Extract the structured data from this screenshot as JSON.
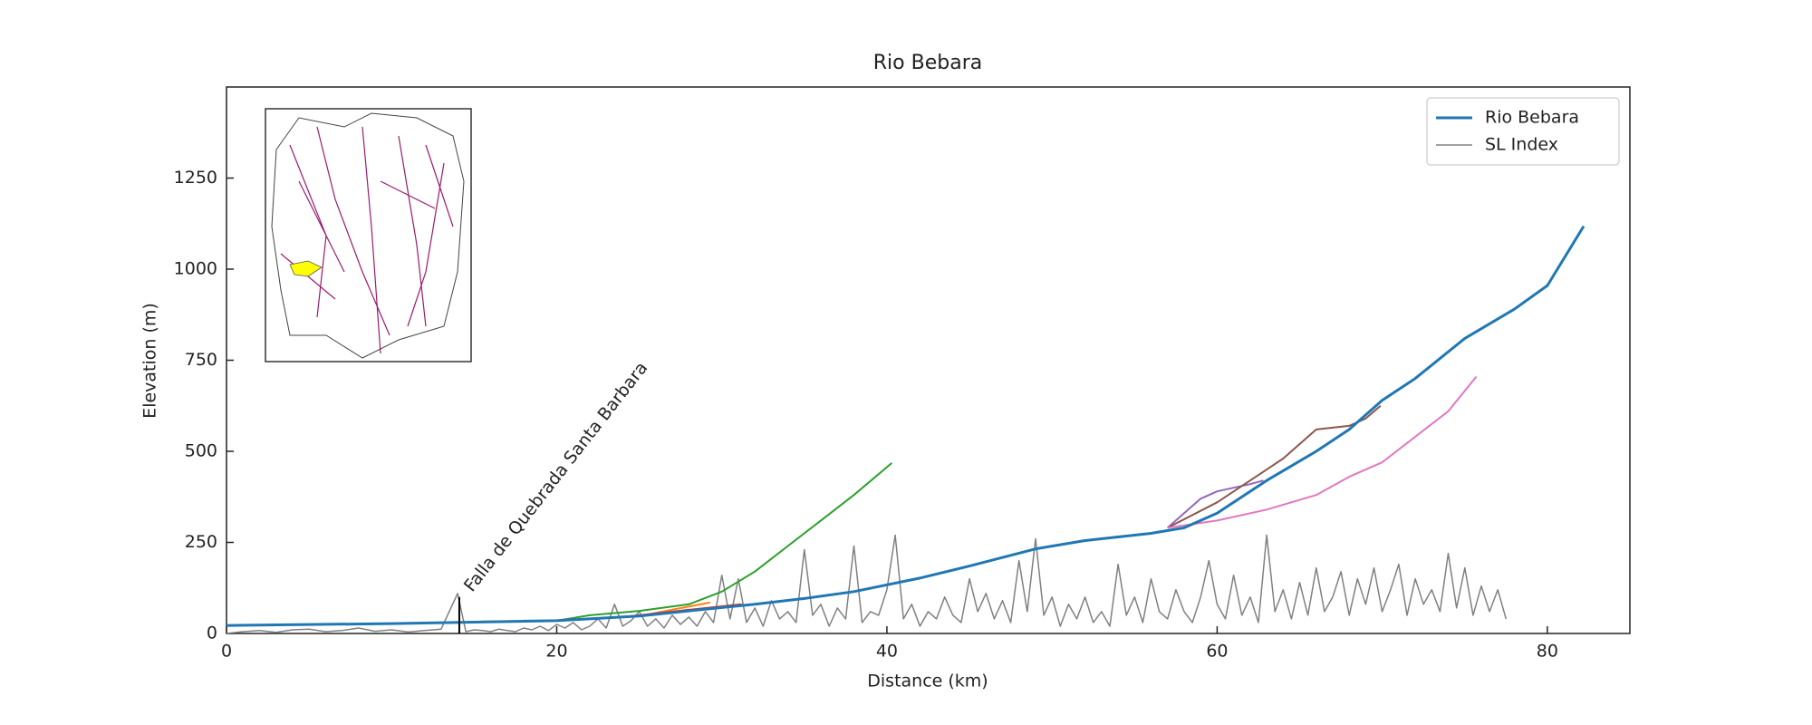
{
  "chart_data": {
    "type": "line",
    "title": "Rio Bebara",
    "xlabel": "Distance (km)",
    "ylabel": "Elevation (m)",
    "xlim": [
      0,
      85
    ],
    "ylim": [
      0,
      1500
    ],
    "xticks": [
      0,
      20,
      40,
      60,
      80
    ],
    "yticks": [
      0,
      250,
      500,
      750,
      1000,
      1250
    ],
    "grid": false,
    "legend_position": "upper-right",
    "annotation": {
      "text": "Falla de Quebrada Santa Barbara",
      "x": 14.1,
      "y": 100
    },
    "series": [
      {
        "name": "Rio Bebara",
        "color": "#1f77b4",
        "width": 3,
        "x": [
          0,
          10,
          15,
          20,
          25,
          28,
          32,
          35,
          38,
          42,
          45,
          49,
          52,
          56,
          58,
          60,
          63,
          66,
          68,
          70,
          72,
          75,
          78,
          80,
          82.2
        ],
        "values": [
          22,
          27,
          31,
          35,
          48,
          62,
          80,
          96,
          115,
          152,
          185,
          232,
          255,
          275,
          290,
          330,
          420,
          500,
          560,
          640,
          700,
          810,
          890,
          955,
          1118
        ]
      },
      {
        "name": "SL Index",
        "color": "#808080",
        "width": 1.5,
        "x": [
          0,
          1,
          2,
          3,
          4,
          5,
          6,
          7,
          8,
          9,
          10,
          11,
          12,
          13,
          14,
          14.5,
          15,
          15.5,
          16,
          16.5,
          17,
          17.5,
          18,
          18.5,
          19,
          19.5,
          20,
          20.5,
          21,
          21.5,
          22,
          22.5,
          23,
          23.5,
          24,
          24.5,
          25,
          25.5,
          26,
          26.5,
          27,
          27.5,
          28,
          28.5,
          29,
          29.5,
          30,
          30.5,
          31,
          31.5,
          32,
          32.5,
          33,
          33.5,
          34,
          34.5,
          35,
          35.5,
          36,
          36.5,
          37,
          37.5,
          38,
          38.5,
          39,
          39.5,
          40,
          40.5,
          41,
          41.5,
          42,
          42.5,
          43,
          43.5,
          44,
          44.5,
          45,
          45.5,
          46,
          46.5,
          47,
          47.5,
          48,
          48.5,
          49,
          49.5,
          50,
          50.5,
          51,
          51.5,
          52,
          52.5,
          53,
          53.5,
          54,
          54.5,
          55,
          55.5,
          56,
          56.5,
          57,
          57.5,
          58,
          58.5,
          59,
          59.5,
          60,
          60.5,
          61,
          61.5,
          62,
          62.5,
          63,
          63.5,
          64,
          64.5,
          65,
          65.5,
          66,
          66.5,
          67,
          67.5,
          68,
          68.5,
          69,
          69.5,
          70,
          70.5,
          71,
          71.5,
          72,
          72.5,
          73,
          73.5,
          74,
          74.5,
          75,
          75.5,
          76,
          76.5,
          77,
          77.5
        ],
        "values": [
          0,
          5,
          8,
          3,
          10,
          12,
          5,
          8,
          15,
          6,
          10,
          4,
          8,
          12,
          110,
          5,
          10,
          8,
          5,
          12,
          8,
          5,
          15,
          10,
          20,
          8,
          25,
          15,
          30,
          10,
          20,
          40,
          15,
          80,
          20,
          35,
          60,
          20,
          40,
          15,
          50,
          25,
          45,
          20,
          60,
          30,
          160,
          40,
          150,
          30,
          70,
          20,
          90,
          40,
          60,
          30,
          230,
          50,
          80,
          20,
          70,
          40,
          240,
          30,
          60,
          50,
          120,
          270,
          40,
          80,
          20,
          60,
          40,
          100,
          50,
          30,
          150,
          60,
          110,
          40,
          90,
          30,
          200,
          60,
          260,
          50,
          100,
          20,
          80,
          40,
          100,
          30,
          60,
          20,
          190,
          50,
          100,
          30,
          150,
          60,
          40,
          120,
          60,
          30,
          100,
          200,
          80,
          40,
          160,
          50,
          100,
          30,
          270,
          60,
          120,
          40,
          140,
          50,
          180,
          60,
          100,
          170,
          50,
          150,
          80,
          180,
          60,
          120,
          190,
          50,
          150,
          80,
          120,
          60,
          220,
          70,
          180,
          50,
          130,
          60,
          120,
          40
        ]
      },
      {
        "color": "#2ca02c",
        "width": 2,
        "x": [
          18,
          20,
          22,
          25,
          28,
          30,
          32,
          34,
          36,
          38,
          40.3
        ],
        "values": [
          35,
          35,
          50,
          62,
          80,
          115,
          170,
          240,
          310,
          380,
          468
        ]
      },
      {
        "color": "#ff7f0e",
        "width": 2,
        "x": [
          15.5,
          20,
          25,
          29.3
        ],
        "values": [
          33,
          35,
          48,
          85
        ]
      },
      {
        "color": "#d62728",
        "width": 2,
        "x": [
          20,
          24,
          28,
          31.2
        ],
        "values": [
          35,
          45,
          65,
          80
        ]
      },
      {
        "color": "#9467bd",
        "width": 2,
        "x": [
          57,
          59,
          60,
          62,
          62.8
        ],
        "values": [
          290,
          370,
          390,
          410,
          420
        ]
      },
      {
        "color": "#8c564b",
        "width": 2,
        "x": [
          57,
          60,
          62,
          64,
          66,
          68,
          69,
          69.9
        ],
        "values": [
          290,
          360,
          420,
          480,
          560,
          570,
          590,
          625
        ]
      },
      {
        "color": "#e377c2",
        "width": 2,
        "x": [
          57,
          60,
          63,
          66,
          68,
          70,
          72,
          74,
          75.7
        ],
        "values": [
          290,
          310,
          340,
          380,
          430,
          470,
          540,
          610,
          705
        ]
      }
    ]
  }
}
